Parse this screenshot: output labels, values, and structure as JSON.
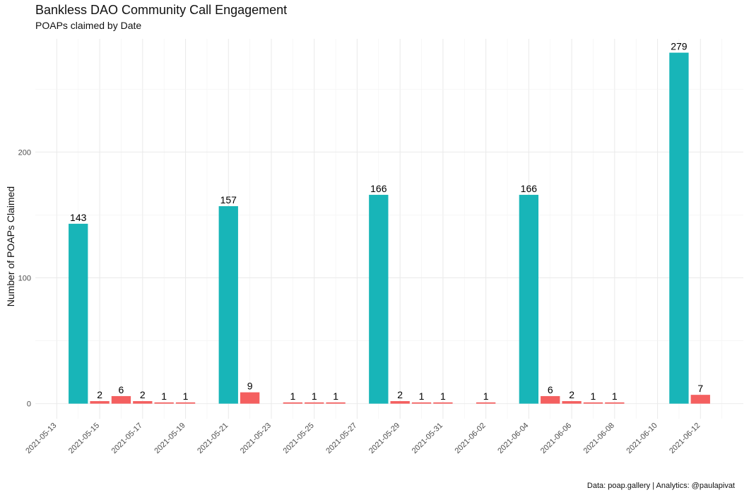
{
  "chart_data": {
    "type": "bar",
    "title": "Bankless DAO Community Call Engagement",
    "subtitle": "POAPs claimed by Date",
    "ylabel": "Number of POAPs Claimed",
    "xlabel": "",
    "caption": "Data: poap.gallery | Analytics: @paulapivat",
    "ylim": [
      -12,
      290
    ],
    "y_ticks": [
      0,
      100,
      200
    ],
    "x_start": "2021-05-12",
    "x_end": "2021-06-14",
    "x_ticks": [
      "2021-05-13",
      "2021-05-15",
      "2021-05-17",
      "2021-05-19",
      "2021-05-21",
      "2021-05-23",
      "2021-05-25",
      "2021-05-27",
      "2021-05-29",
      "2021-05-31",
      "2021-06-02",
      "2021-06-04",
      "2021-06-06",
      "2021-06-08",
      "2021-06-10",
      "2021-06-12"
    ],
    "grid": true,
    "colors": {
      "community_call": "#18B5B8",
      "other": "#F45F5F"
    },
    "bars": [
      {
        "date": "2021-05-14",
        "value": 143,
        "group": "community_call"
      },
      {
        "date": "2021-05-15",
        "value": 2,
        "group": "other"
      },
      {
        "date": "2021-05-16",
        "value": 6,
        "group": "other"
      },
      {
        "date": "2021-05-17",
        "value": 2,
        "group": "other"
      },
      {
        "date": "2021-05-18",
        "value": 1,
        "group": "other"
      },
      {
        "date": "2021-05-19",
        "value": 1,
        "group": "other"
      },
      {
        "date": "2021-05-21",
        "value": 157,
        "group": "community_call"
      },
      {
        "date": "2021-05-22",
        "value": 9,
        "group": "other"
      },
      {
        "date": "2021-05-24",
        "value": 1,
        "group": "other"
      },
      {
        "date": "2021-05-25",
        "value": 1,
        "group": "other"
      },
      {
        "date": "2021-05-26",
        "value": 1,
        "group": "other"
      },
      {
        "date": "2021-05-28",
        "value": 166,
        "group": "community_call"
      },
      {
        "date": "2021-05-29",
        "value": 2,
        "group": "other"
      },
      {
        "date": "2021-05-30",
        "value": 1,
        "group": "other"
      },
      {
        "date": "2021-05-31",
        "value": 1,
        "group": "other"
      },
      {
        "date": "2021-06-02",
        "value": 1,
        "group": "other"
      },
      {
        "date": "2021-06-04",
        "value": 166,
        "group": "community_call"
      },
      {
        "date": "2021-06-05",
        "value": 6,
        "group": "other"
      },
      {
        "date": "2021-06-06",
        "value": 2,
        "group": "other"
      },
      {
        "date": "2021-06-07",
        "value": 1,
        "group": "other"
      },
      {
        "date": "2021-06-08",
        "value": 1,
        "group": "other"
      },
      {
        "date": "2021-06-11",
        "value": 279,
        "group": "community_call"
      },
      {
        "date": "2021-06-12",
        "value": 7,
        "group": "other"
      }
    ]
  }
}
